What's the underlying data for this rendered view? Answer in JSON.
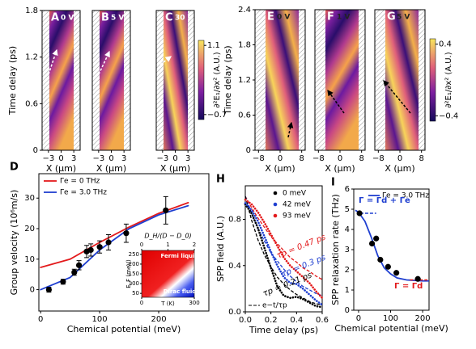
{
  "chart_data": [
    {
      "type": "heatmap",
      "panels": [
        {
          "label": "A",
          "bias": "0 V"
        },
        {
          "label": "B",
          "bias": "5 V"
        },
        {
          "label": "C",
          "bias": "30 V"
        }
      ],
      "xlabel": "X (μm)",
      "ylabel": "Time delay (ps)",
      "xlim": [
        -4.5,
        4.5
      ],
      "xticks": [
        {
          "value": -3,
          "label": "−3"
        },
        0,
        3
      ],
      "ylim": [
        0,
        1.8
      ],
      "yticks": [
        0,
        0.6,
        1.2,
        1.8
      ],
      "colorbar": {
        "label": "∂²E₁/∂x² (A.U.)",
        "lim": [
          -0.83,
          1.23
        ],
        "ticks": [
          {
            "value": -0.7,
            "label": "−0.7"
          },
          1.1
        ]
      }
    },
    {
      "type": "heatmap",
      "panels": [
        {
          "label": "E",
          "bias": "0 V"
        },
        {
          "label": "F",
          "bias": "1 V"
        },
        {
          "label": "G",
          "bias": "5 V"
        }
      ],
      "xlabel": "X (μm)",
      "ylabel": "Time delay (ps)",
      "xlim": [
        -9.3,
        9.3
      ],
      "xticks": [
        {
          "value": -8,
          "label": "−8"
        },
        0,
        8
      ],
      "ylim": [
        0,
        2.4
      ],
      "yticks": [
        0,
        0.6,
        1.2,
        1.8,
        2.4
      ],
      "colorbar": {
        "label": "∂²E₁/∂x² (A.U.)",
        "lim": [
          -0.46,
          0.46
        ],
        "ticks": [
          {
            "value": -0.4,
            "label": "−0.4"
          },
          0.4
        ]
      }
    },
    {
      "type": "line",
      "label": "D",
      "xlabel": "Chemical potential (meV)",
      "ylabel": "Group velocity (10⁶m/s)",
      "xlim": [
        -3,
        285
      ],
      "ylim": [
        -7,
        38
      ],
      "xticks": [
        0,
        100,
        200
      ],
      "yticks": [
        0,
        10,
        20,
        30
      ],
      "legend": "upper left",
      "series": [
        {
          "name": "Γe = 0 THz",
          "color": "#e31a1c",
          "x": [
            0,
            50,
            100,
            150,
            200,
            250
          ],
          "values": [
            7.3,
            10,
            15.5,
            20.5,
            25,
            28.5
          ]
        },
        {
          "name": "Γe = 3.0 THz",
          "color": "#1f3fd0",
          "x": [
            0,
            50,
            100,
            150,
            200,
            250
          ],
          "values": [
            0,
            4,
            13,
            20,
            24.5,
            27.5
          ]
        }
      ],
      "points": {
        "color": "#000",
        "x": [
          14,
          38,
          57,
          65,
          78,
          85,
          100,
          115,
          145,
          212
        ],
        "values": [
          0,
          2.6,
          5.7,
          8,
          12.5,
          13,
          14,
          15.5,
          18.5,
          26
        ],
        "errors": [
          0.8,
          0.8,
          1,
          1.5,
          2,
          2,
          2,
          2.5,
          3,
          4.5
        ]
      },
      "inset": {
        "xlabel": "T (K)",
        "ylabel": "E_F (meV)",
        "toplabel": "D_H/(D − D_0)",
        "xlim": [
          0,
          300
        ],
        "ylim": [
          30,
          270
        ],
        "xticks": [
          0,
          300
        ],
        "yticks": [
          50,
          100,
          150,
          200,
          250
        ],
        "toplim": [
          0,
          2
        ],
        "topticks": [
          0,
          1,
          2
        ],
        "annotations": [
          "Fermi liquid",
          "Dirac fluid"
        ]
      }
    },
    {
      "type": "line",
      "label": "H",
      "xlabel": "Time delay (ps)",
      "ylabel": "SPP field (A.U.)",
      "xlim": [
        0,
        0.6
      ],
      "ylim": [
        0,
        1.09
      ],
      "xticks": [
        {
          "value": 0,
          "label": "0.0"
        },
        0.2,
        0.4,
        0.6
      ],
      "yticks": [
        {
          "value": 0,
          "label": "0.0"
        },
        0.4,
        0.8
      ],
      "legend": "upper right",
      "x": [
        0,
        0.05,
        0.1,
        0.15,
        0.2,
        0.25,
        0.3,
        0.35,
        0.4,
        0.45,
        0.5,
        0.55,
        0.6
      ],
      "series": [
        {
          "name": "0 meV",
          "color": "#000",
          "values": [
            0.93,
            0.85,
            0.72,
            0.55,
            0.38,
            0.22,
            0.14,
            0.12,
            0.13,
            0.11,
            0.08,
            0.05,
            0.04
          ]
        },
        {
          "name": "42 meV",
          "color": "#1f3fd0",
          "values": [
            0.94,
            0.88,
            0.78,
            0.65,
            0.52,
            0.4,
            0.3,
            0.25,
            0.24,
            0.2,
            0.15,
            0.1,
            0.06
          ]
        },
        {
          "name": "93 meV",
          "color": "#e31a1c",
          "values": [
            0.97,
            0.93,
            0.86,
            0.77,
            0.67,
            0.57,
            0.47,
            0.4,
            0.35,
            0.3,
            0.25,
            0.18,
            0.12
          ]
        }
      ],
      "fits": {
        "name": "e−t/τp",
        "series": [
          {
            "color": "#e31a1c",
            "values": [
              1,
              0.9,
              0.81,
              0.73,
              0.65,
              0.59,
              0.53,
              0.47,
              0.43,
              0.38,
              0.35,
              0.31,
              0.28
            ]
          },
          {
            "color": "#1f3fd0",
            "values": [
              1,
              0.85,
              0.72,
              0.61,
              0.51,
              0.44,
              0.37,
              0.31,
              0.26,
              0.22,
              0.19,
              0.16,
              0.14
            ]
          },
          {
            "color": "#000",
            "values": [
              1,
              0.79,
              0.62,
              0.49,
              0.39,
              0.3,
              0.24,
              0.19,
              0.15,
              0.12,
              0.09,
              0.07,
              0.06
            ]
          }
        ]
      },
      "annotations": [
        {
          "text": "τp = 0.47 ps",
          "color": "#e31a1c"
        },
        {
          "text": "τp = 0.3 ps",
          "color": "#1f3fd0"
        },
        {
          "text": "τp = 0.21 ps",
          "color": "#000"
        }
      ]
    },
    {
      "type": "scatter",
      "label": "I",
      "xlabel": "Chemical potential (meV)",
      "ylabel": "SPP relaxation rate (THz)",
      "xlim": [
        -15,
        220
      ],
      "ylim": [
        0,
        6
      ],
      "xticks": [
        0,
        100,
        200
      ],
      "yticks": [
        0,
        1,
        2,
        3,
        4,
        5,
        6
      ],
      "legend": "upper right",
      "points": {
        "color": "#000",
        "x": [
          3,
          42,
          55,
          68,
          92,
          118,
          185
        ],
        "values": [
          4.8,
          3.3,
          3.55,
          2.5,
          2.15,
          1.85,
          1.55
        ]
      },
      "series": [
        {
          "name": "Γe = 3.0 THz",
          "color": "#1f3fd0",
          "x": [
            -10,
            0,
            20,
            40,
            60,
            80,
            100,
            120,
            150,
            200,
            220
          ],
          "values": [
            4.95,
            4.85,
            4.4,
            3.6,
            2.7,
            2.1,
            1.8,
            1.6,
            1.5,
            1.45,
            1.45
          ]
        }
      ],
      "reference_lines": [
        {
          "value": 4.8,
          "color": "#1f3fd0",
          "x": [
            5,
            55
          ]
        },
        {
          "value": 1.5,
          "color": "#e31a1c",
          "x": [
            160,
            215
          ]
        }
      ],
      "annotations": [
        {
          "text": "Γ = Γd + Γe",
          "color": "#1f3fd0"
        },
        {
          "text": "Γ = Γd",
          "color": "#e31a1c"
        }
      ]
    }
  ]
}
